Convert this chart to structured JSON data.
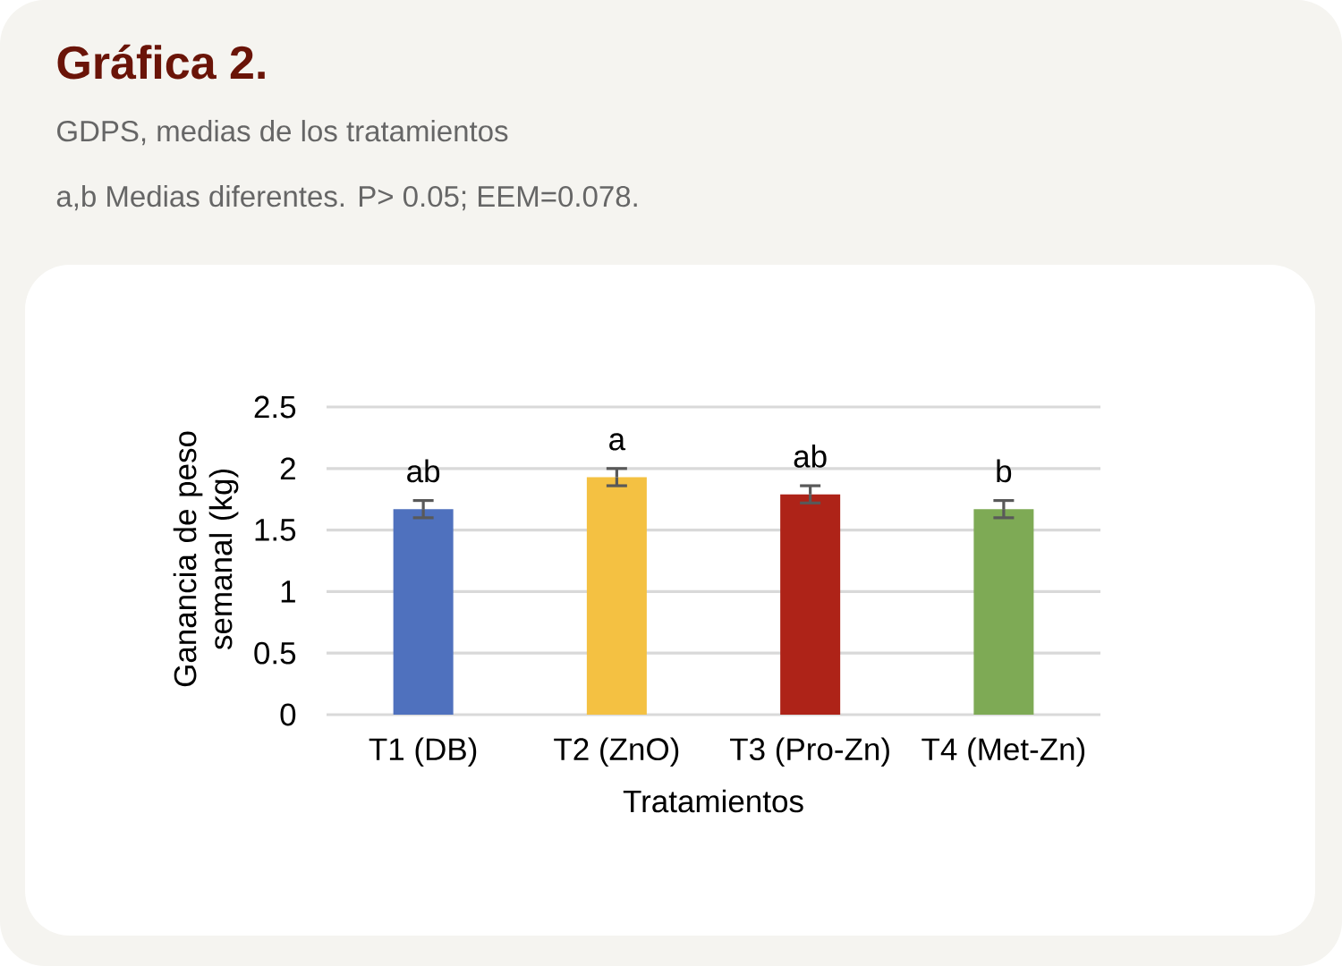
{
  "chart_data": {
    "type": "bar",
    "title": "Gráfica 2.",
    "subtitle": "GDPS, medias de los tratamientos",
    "xlabel": "Tratamientos",
    "ylabel": "Ganancia de peso semanal (kg)",
    "categories": [
      "T1 (DB)",
      "T2 (ZnO)",
      "T3 (Pro-Zn)",
      "T4 (Met-Zn)"
    ],
    "values": [
      1.67,
      1.93,
      1.79,
      1.67
    ],
    "errors": [
      0.07,
      0.07,
      0.07,
      0.07
    ],
    "colors": [
      "#4f71be",
      "#f4c142",
      "#ae2318",
      "#7eaa55"
    ],
    "ylim": [
      0,
      2.5
    ],
    "yticks": [
      0,
      0.5,
      1,
      1.5,
      2,
      2.5
    ],
    "grid": "y",
    "annotations": [
      "a,b Medias diferentes. P> 0.05; EEM=0.078.",
      {
        "text": "ab",
        "x": "T1 (DB)",
        "y": 1.67
      },
      {
        "text": "a",
        "x": "T2 (ZnO)",
        "y": 1.93
      },
      {
        "text": "ab",
        "x": "T3 (Pro-Zn)",
        "y": 1.79
      },
      {
        "text": "b",
        "x": "T4 (Met-Zn)",
        "y": 1.67
      }
    ]
  }
}
